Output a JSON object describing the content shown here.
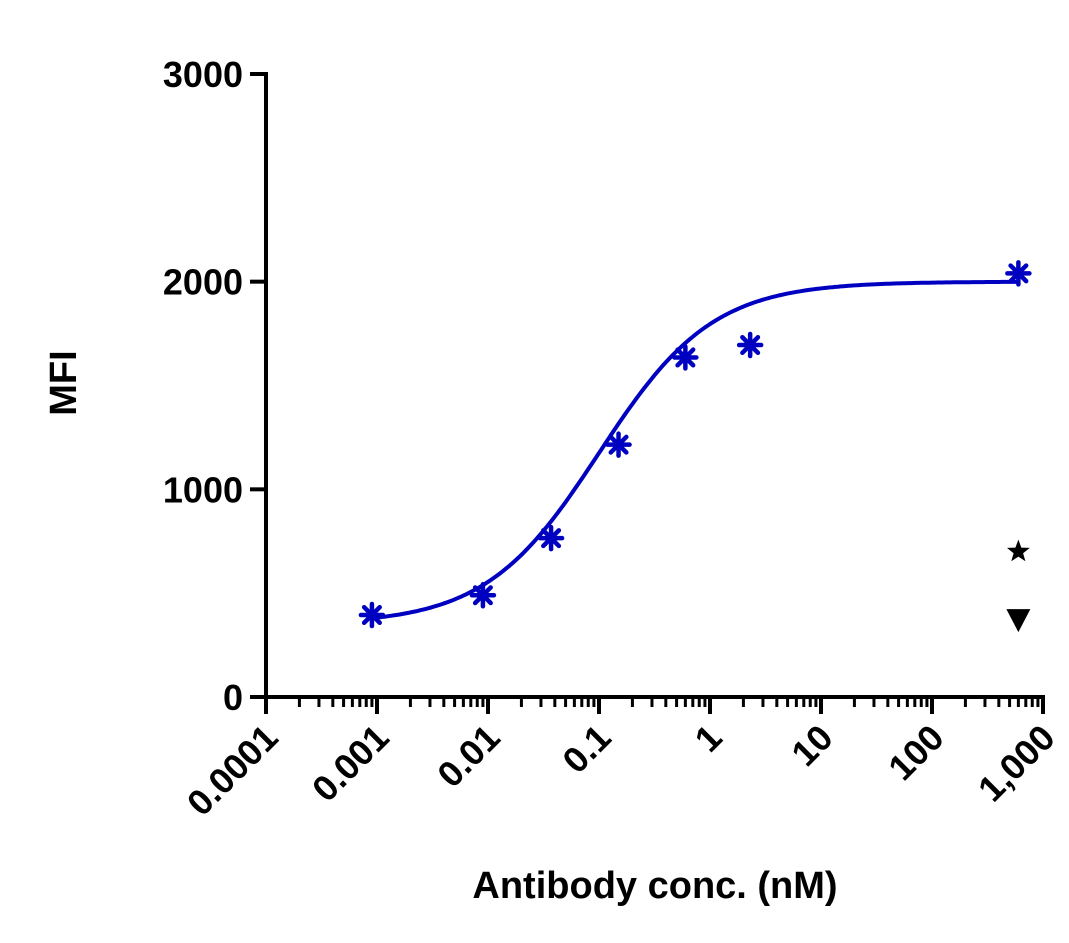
{
  "chart_data": {
    "type": "scatter",
    "title": "",
    "xlabel": "Antibody conc. (nM)",
    "ylabel": "MFI",
    "xscale": "log",
    "xlim": [
      0.0001,
      1000
    ],
    "ylim": [
      0,
      3000
    ],
    "grid": false,
    "legend": "none",
    "x_ticks": [
      {
        "value": 0.0001,
        "label": "0.0001"
      },
      {
        "value": 0.001,
        "label": "0.001"
      },
      {
        "value": 0.01,
        "label": "0.01"
      },
      {
        "value": 0.1,
        "label": "0.1"
      },
      {
        "value": 1,
        "label": "1"
      },
      {
        "value": 10,
        "label": "10"
      },
      {
        "value": 100,
        "label": "100"
      },
      {
        "value": 1000,
        "label": "1,000"
      }
    ],
    "y_ticks": [
      {
        "value": 0,
        "label": "0"
      },
      {
        "value": 1000,
        "label": "1000"
      },
      {
        "value": 2000,
        "label": "2000"
      },
      {
        "value": 3000,
        "label": "3000"
      }
    ],
    "series": [
      {
        "color": "#0000c0",
        "marker": "asterisk",
        "points": [
          {
            "x": 0.0009,
            "y": 395
          },
          {
            "x": 0.009,
            "y": 490
          },
          {
            "x": 0.037,
            "y": 765
          },
          {
            "x": 0.15,
            "y": 1215
          },
          {
            "x": 0.6,
            "y": 1635
          },
          {
            "x": 2.3,
            "y": 1695
          },
          {
            "x": 600,
            "y": 2040
          }
        ],
        "fit": {
          "model": "four-parameter logistic",
          "bottom": 350,
          "top": 2000,
          "ec50": 0.1,
          "hill": 0.85
        }
      },
      {
        "color": "#000000",
        "marker": "star",
        "points": [
          {
            "x": 600,
            "y": 700
          }
        ]
      },
      {
        "color": "#000000",
        "marker": "triangle-down",
        "points": [
          {
            "x": 600,
            "y": 370
          }
        ]
      }
    ]
  }
}
